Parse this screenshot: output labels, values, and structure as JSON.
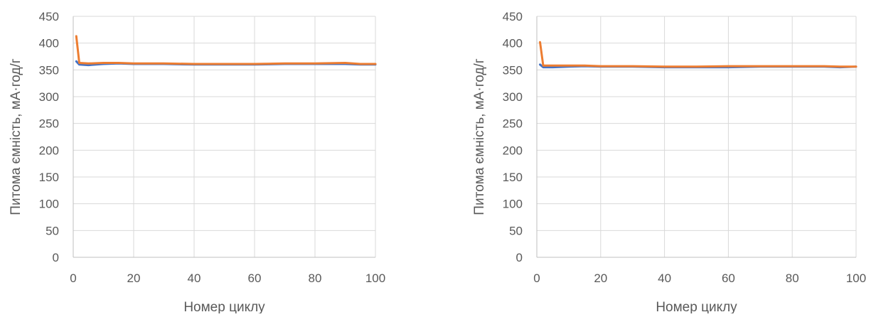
{
  "chart_data": [
    {
      "type": "line",
      "xlabel": "Номер циклу",
      "ylabel": "Питома ємність, мА·год/г",
      "xlim": [
        0,
        100
      ],
      "ylim": [
        0,
        450
      ],
      "xticks": [
        0,
        20,
        40,
        60,
        80,
        100
      ],
      "yticks": [
        0,
        50,
        100,
        150,
        200,
        250,
        300,
        350,
        400,
        450
      ],
      "grid": true,
      "series": [
        {
          "color": "#4472c4",
          "x": [
            1,
            2,
            5,
            10,
            15,
            20,
            30,
            40,
            50,
            60,
            70,
            80,
            90,
            95,
            100
          ],
          "y": [
            366,
            360,
            359,
            361,
            362,
            361,
            361,
            360,
            360,
            360,
            361,
            361,
            361,
            360,
            360
          ]
        },
        {
          "color": "#ed7d31",
          "x": [
            1,
            2,
            5,
            10,
            15,
            20,
            30,
            40,
            50,
            60,
            70,
            80,
            90,
            95,
            100
          ],
          "y": [
            413,
            363,
            362,
            363,
            363,
            362,
            362,
            361,
            361,
            361,
            362,
            362,
            363,
            361,
            361
          ]
        }
      ]
    },
    {
      "type": "line",
      "xlabel": "Номер циклу",
      "ylabel": "Питома ємність, мА·год/г",
      "xlim": [
        0,
        100
      ],
      "ylim": [
        0,
        450
      ],
      "xticks": [
        0,
        20,
        40,
        60,
        80,
        100
      ],
      "yticks": [
        0,
        50,
        100,
        150,
        200,
        250,
        300,
        350,
        400,
        450
      ],
      "grid": true,
      "series": [
        {
          "color": "#4472c4",
          "x": [
            1,
            2,
            5,
            10,
            15,
            20,
            30,
            40,
            50,
            60,
            70,
            80,
            90,
            95,
            100
          ],
          "y": [
            360,
            355,
            355,
            356,
            357,
            356,
            356,
            355,
            355,
            355,
            356,
            356,
            356,
            355,
            356
          ]
        },
        {
          "color": "#ed7d31",
          "x": [
            1,
            2,
            5,
            10,
            15,
            20,
            30,
            40,
            50,
            60,
            70,
            80,
            90,
            95,
            100
          ],
          "y": [
            402,
            358,
            358,
            358,
            358,
            357,
            357,
            356,
            356,
            357,
            357,
            357,
            357,
            356,
            356
          ]
        }
      ]
    }
  ]
}
